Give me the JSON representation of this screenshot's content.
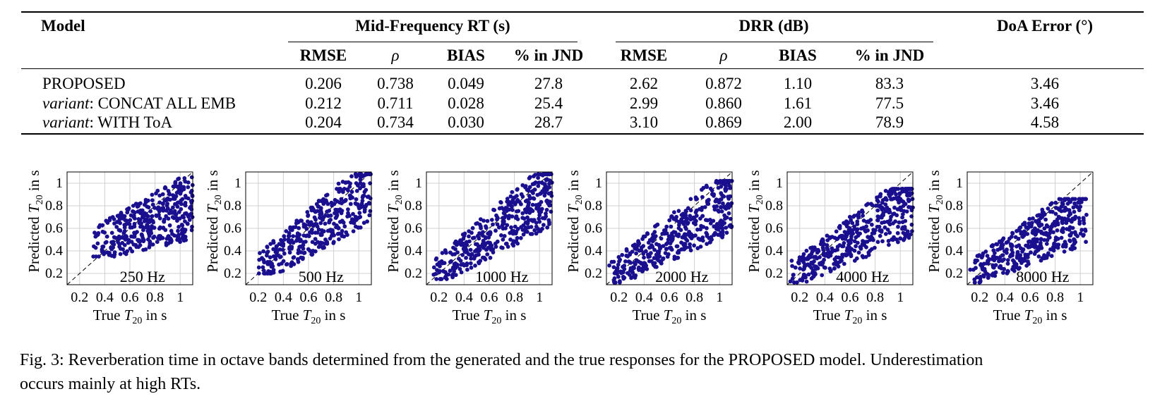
{
  "table": {
    "col_model": "Model",
    "group_rt": "Mid-Frequency RT (s)",
    "group_drr": "DRR (dB)",
    "col_doa": "DoA Error (°)",
    "sub_rmse": "RMSE",
    "sub_rho": "ρ",
    "sub_bias": "BIAS",
    "sub_jnd": "% in JND",
    "rows": [
      {
        "prefix": "",
        "name": "PROPOSED",
        "values": [
          "0.206",
          "0.738",
          "0.049",
          "27.8",
          "2.62",
          "0.872",
          "1.10",
          "83.3",
          "3.46"
        ]
      },
      {
        "prefix": "variant",
        "name": ": CONCAT ALL EMB",
        "values": [
          "0.212",
          "0.711",
          "0.028",
          "25.4",
          "2.99",
          "0.860",
          "1.61",
          "77.5",
          "3.46"
        ]
      },
      {
        "prefix": "variant",
        "name": ": WITH ToA",
        "values": [
          "0.204",
          "0.734",
          "0.030",
          "28.7",
          "3.10",
          "0.869",
          "2.00",
          "78.9",
          "4.58"
        ]
      }
    ]
  },
  "plots": {
    "xlabel_prefix": "True ",
    "ylabel_prefix": "Predicted ",
    "t_symbol": "T",
    "t_sub": "20",
    "label_suffix": " in s",
    "x_ticks": [
      "0.2",
      "0.4",
      "0.6",
      "0.8",
      "1"
    ],
    "y_ticks": [
      "0.2",
      "0.4",
      "0.6",
      "0.8",
      "1"
    ],
    "bands": [
      "250 Hz",
      "500 Hz",
      "1000 Hz",
      "2000 Hz",
      "4000 Hz",
      "8000 Hz"
    ],
    "point_color": "#1a0f8f"
  },
  "chart_data": [
    {
      "type": "scatter",
      "band": "250 Hz",
      "xlim": [
        0.1,
        1.1
      ],
      "ylim": [
        0.1,
        1.1
      ],
      "grid": true,
      "identity_line": true,
      "cloud": {
        "x_range": [
          0.3,
          1.1
        ],
        "y_range": [
          0.35,
          1.08
        ],
        "slope": 0.45,
        "n": 400
      }
    },
    {
      "type": "scatter",
      "band": "500 Hz",
      "xlim": [
        0.1,
        1.1
      ],
      "ylim": [
        0.1,
        1.1
      ],
      "grid": true,
      "identity_line": true,
      "cloud": {
        "x_range": [
          0.2,
          1.1
        ],
        "y_range": [
          0.2,
          1.08
        ],
        "slope": 0.8,
        "n": 400
      }
    },
    {
      "type": "scatter",
      "band": "1000 Hz",
      "xlim": [
        0.1,
        1.1
      ],
      "ylim": [
        0.1,
        1.1
      ],
      "grid": true,
      "identity_line": true,
      "cloud": {
        "x_range": [
          0.15,
          1.1
        ],
        "y_range": [
          0.15,
          1.08
        ],
        "slope": 0.78,
        "n": 420
      }
    },
    {
      "type": "scatter",
      "band": "2000 Hz",
      "xlim": [
        0.1,
        1.1
      ],
      "ylim": [
        0.1,
        1.1
      ],
      "grid": true,
      "identity_line": true,
      "cloud": {
        "x_range": [
          0.12,
          1.1
        ],
        "y_range": [
          0.12,
          1.02
        ],
        "slope": 0.7,
        "n": 430
      }
    },
    {
      "type": "scatter",
      "band": "4000 Hz",
      "xlim": [
        0.1,
        1.1
      ],
      "ylim": [
        0.1,
        1.1
      ],
      "grid": true,
      "identity_line": true,
      "cloud": {
        "x_range": [
          0.12,
          1.1
        ],
        "y_range": [
          0.12,
          0.95
        ],
        "slope": 0.65,
        "n": 430
      }
    },
    {
      "type": "scatter",
      "band": "8000 Hz",
      "xlim": [
        0.1,
        1.1
      ],
      "ylim": [
        0.1,
        1.1
      ],
      "grid": true,
      "identity_line": true,
      "cloud": {
        "x_range": [
          0.12,
          1.05
        ],
        "y_range": [
          0.12,
          0.86
        ],
        "slope": 0.6,
        "n": 430
      }
    }
  ],
  "caption": {
    "line1": "Fig. 3: Reverberation time in octave bands determined from the generated and the true responses for the PROPOSED model. Underestimation",
    "line2": "occurs mainly at high RTs."
  }
}
